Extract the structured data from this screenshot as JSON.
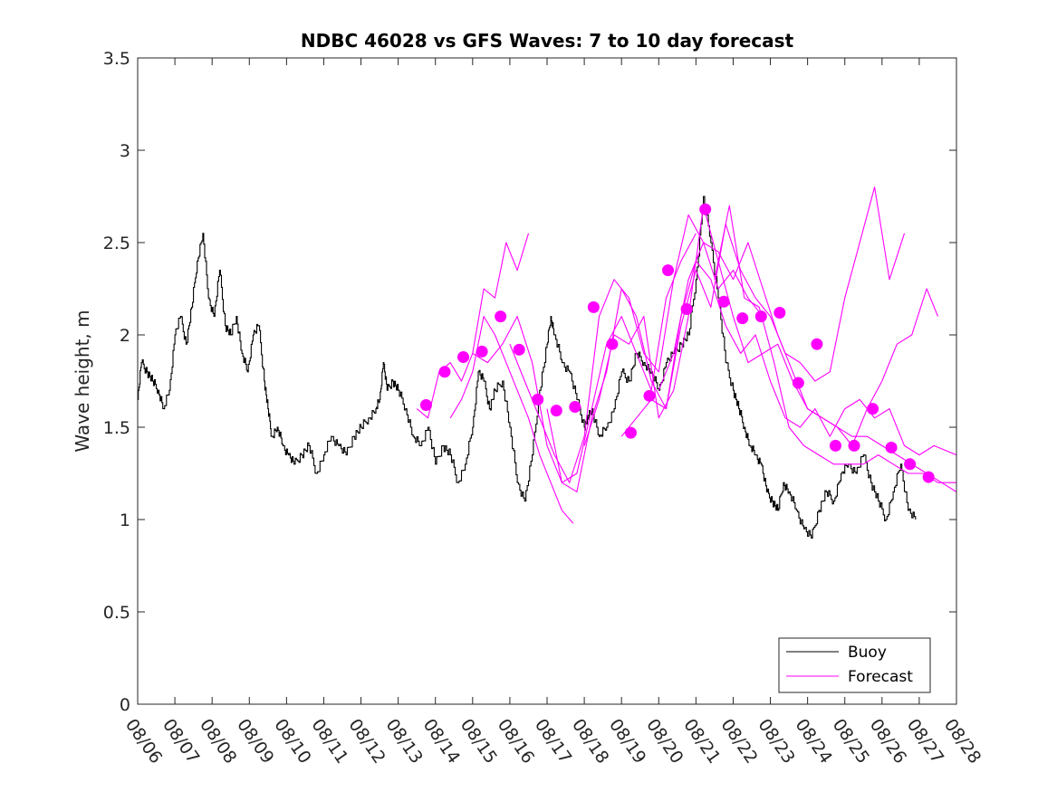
{
  "chart_data": {
    "type": "line",
    "title": "NDBC 46028 vs GFS Waves: 7 to 10 day forecast",
    "xlabel": "",
    "ylabel": "Wave height, m",
    "ylim": [
      0,
      3.5
    ],
    "yticks": [
      0,
      0.5,
      1,
      1.5,
      2,
      2.5,
      3,
      3.5
    ],
    "ytick_labels": [
      "0",
      "0.5",
      "1",
      "1.5",
      "2",
      "2.5",
      "3",
      "3.5"
    ],
    "xlim": [
      0,
      22
    ],
    "xtick_labels": [
      "08/06",
      "08/07",
      "08/08",
      "08/09",
      "08/10",
      "08/11",
      "08/12",
      "08/13",
      "08/14",
      "08/15",
      "08/16",
      "08/17",
      "08/18",
      "08/19",
      "08/20",
      "08/21",
      "08/22",
      "08/23",
      "08/24",
      "08/25",
      "08/26",
      "08/27",
      "08/28"
    ],
    "colors": {
      "buoy": "#000000",
      "forecast": "#ff00ff"
    },
    "legend": {
      "position": "bottom-right",
      "entries": [
        {
          "label": "Buoy",
          "series": "buoy"
        },
        {
          "label": "Forecast",
          "series": "forecast"
        }
      ]
    },
    "series": [
      {
        "name": "Buoy",
        "key": "buoy",
        "x": [
          0.0,
          0.1,
          0.25,
          0.4,
          0.55,
          0.7,
          0.85,
          1.0,
          1.15,
          1.3,
          1.45,
          1.6,
          1.75,
          1.9,
          2.05,
          2.2,
          2.35,
          2.5,
          2.65,
          2.8,
          2.95,
          3.1,
          3.25,
          3.4,
          3.5,
          3.6,
          3.75,
          3.9,
          4.05,
          4.2,
          4.4,
          4.6,
          4.8,
          5.0,
          5.2,
          5.4,
          5.6,
          5.8,
          6.0,
          6.2,
          6.4,
          6.5,
          6.6,
          6.7,
          6.85,
          7.0,
          7.2,
          7.4,
          7.6,
          7.8,
          8.0,
          8.2,
          8.4,
          8.6,
          8.8,
          9.0,
          9.15,
          9.3,
          9.45,
          9.6,
          9.8,
          10.0,
          10.2,
          10.4,
          10.6,
          10.8,
          11.0,
          11.1,
          11.2,
          11.4,
          11.6,
          11.8,
          12.0,
          12.1,
          12.2,
          12.4,
          12.6,
          12.8,
          13.0,
          13.2,
          13.4,
          13.6,
          13.8,
          14.0,
          14.2,
          14.4,
          14.6,
          14.8,
          15.0,
          15.2,
          15.4,
          15.6,
          15.8,
          16.0,
          16.15,
          16.3,
          16.45,
          16.6,
          16.75,
          16.9,
          17.05,
          17.2,
          17.35,
          17.5,
          17.7,
          17.9,
          18.1,
          18.3,
          18.5,
          18.7,
          18.9,
          19.1,
          19.3,
          19.5,
          19.7,
          19.9,
          20.1,
          20.3,
          20.5,
          20.7,
          20.9
        ],
        "y": [
          1.65,
          1.85,
          1.8,
          1.75,
          1.7,
          1.6,
          1.7,
          2.0,
          2.1,
          1.95,
          2.15,
          2.4,
          2.55,
          2.2,
          2.1,
          2.35,
          2.05,
          2.0,
          2.1,
          1.9,
          1.8,
          2.0,
          2.05,
          1.75,
          1.6,
          1.45,
          1.5,
          1.4,
          1.35,
          1.3,
          1.35,
          1.4,
          1.25,
          1.35,
          1.45,
          1.4,
          1.35,
          1.45,
          1.5,
          1.55,
          1.6,
          1.65,
          1.85,
          1.7,
          1.75,
          1.7,
          1.6,
          1.45,
          1.4,
          1.5,
          1.3,
          1.4,
          1.35,
          1.2,
          1.3,
          1.5,
          1.8,
          1.75,
          1.6,
          1.7,
          1.75,
          1.5,
          1.2,
          1.1,
          1.35,
          1.7,
          1.95,
          2.1,
          2.0,
          1.85,
          1.8,
          1.65,
          1.5,
          1.55,
          1.6,
          1.45,
          1.5,
          1.6,
          1.8,
          1.75,
          1.9,
          1.85,
          1.8,
          1.7,
          1.85,
          1.9,
          1.95,
          2.0,
          2.3,
          2.75,
          2.5,
          2.2,
          1.85,
          1.7,
          1.6,
          1.5,
          1.4,
          1.35,
          1.3,
          1.15,
          1.1,
          1.05,
          1.2,
          1.15,
          1.05,
          0.95,
          0.9,
          1.05,
          1.15,
          1.1,
          1.25,
          1.3,
          1.25,
          1.35,
          1.2,
          1.1,
          1.0,
          1.15,
          1.3,
          1.05,
          1.0
        ]
      },
      {
        "name": "Forecast",
        "key": "forecast",
        "runs": [
          {
            "x": [
              7.5,
              7.8,
              8.1,
              8.4,
              8.7,
              9.0,
              9.3,
              9.6,
              9.9,
              10.2,
              10.5
            ],
            "y": [
              1.6,
              1.55,
              1.8,
              1.85,
              1.75,
              1.9,
              2.25,
              2.2,
              2.5,
              2.35,
              2.55
            ]
          },
          {
            "x": [
              8.4,
              8.7,
              9.0,
              9.3,
              9.6,
              9.9,
              10.2,
              10.5,
              10.8,
              11.1,
              11.4,
              11.7
            ],
            "y": [
              1.55,
              1.65,
              1.8,
              2.1,
              2.0,
              1.85,
              1.7,
              1.55,
              1.35,
              1.2,
              1.05,
              0.98
            ]
          },
          {
            "x": [
              9.0,
              9.4,
              9.8,
              10.2,
              10.6,
              11.0,
              11.4,
              11.8,
              12.2,
              12.6,
              13.0,
              13.4,
              13.8,
              14.2,
              14.6,
              15.0
            ],
            "y": [
              1.9,
              1.85,
              1.95,
              2.1,
              1.85,
              1.4,
              1.2,
              1.25,
              1.6,
              1.95,
              2.1,
              1.9,
              1.7,
              2.2,
              2.4,
              2.55
            ]
          },
          {
            "x": [
              10.0,
              10.4,
              10.8,
              11.2,
              11.6,
              12.0,
              12.4,
              12.8,
              13.2,
              13.6,
              14.0,
              14.4,
              14.8,
              15.2,
              15.6,
              16.0,
              16.4,
              16.8
            ],
            "y": [
              1.95,
              1.75,
              1.55,
              1.35,
              1.2,
              1.45,
              2.1,
              2.3,
              2.2,
              1.9,
              1.8,
              2.3,
              2.65,
              2.5,
              2.25,
              2.35,
              2.2,
              2.1
            ]
          },
          {
            "x": [
              11.0,
              11.4,
              11.8,
              12.2,
              12.6,
              13.0,
              13.4,
              13.8,
              14.2,
              14.6,
              15.0,
              15.4,
              15.8,
              16.2,
              16.6,
              17.0,
              17.4,
              17.8,
              18.2,
              18.6,
              19.0,
              19.4,
              19.8,
              20.2,
              20.6
            ],
            "y": [
              1.6,
              1.2,
              1.15,
              1.55,
              1.8,
              2.25,
              2.1,
              1.75,
              1.6,
              2.05,
              2.35,
              2.15,
              2.6,
              2.35,
              2.2,
              2.1,
              1.9,
              1.85,
              1.75,
              1.8,
              2.2,
              2.5,
              2.8,
              2.3,
              2.55
            ]
          },
          {
            "x": [
              12.0,
              12.4,
              12.8,
              13.2,
              13.6,
              14.0,
              14.4,
              14.8,
              15.2,
              15.6,
              16.0,
              16.4,
              16.8,
              17.2,
              17.6,
              18.0,
              18.4,
              18.8,
              19.2,
              19.6,
              20.0,
              20.4,
              20.8,
              21.2,
              21.5
            ],
            "y": [
              1.4,
              1.65,
              2.0,
              1.95,
              2.1,
              1.55,
              1.7,
              2.1,
              2.7,
              2.4,
              2.1,
              1.85,
              1.9,
              1.95,
              1.75,
              1.6,
              1.55,
              1.5,
              1.4,
              1.6,
              1.75,
              1.95,
              2.0,
              2.25,
              2.1
            ]
          },
          {
            "x": [
              13.0,
              13.4,
              13.8,
              14.2,
              14.6,
              15.0,
              15.4,
              15.8,
              16.2,
              16.6,
              17.0,
              17.4,
              17.8,
              18.2,
              18.6,
              19.0,
              19.4,
              19.8,
              20.2,
              20.6,
              21.0,
              21.4,
              22.0
            ],
            "y": [
              1.45,
              1.55,
              1.65,
              1.6,
              2.1,
              2.4,
              2.3,
              2.05,
              1.9,
              2.0,
              1.75,
              1.55,
              1.5,
              1.6,
              1.45,
              1.6,
              1.65,
              1.55,
              1.6,
              1.4,
              1.35,
              1.4,
              1.35
            ]
          },
          {
            "x": [
              14.0,
              14.4,
              14.8,
              15.2,
              15.6,
              16.0,
              16.4,
              16.8,
              17.2,
              17.6,
              18.0,
              18.4,
              18.8,
              19.2,
              19.6,
              20.0,
              20.4,
              20.8,
              21.2,
              21.6,
              22.0
            ],
            "y": [
              1.7,
              1.9,
              2.3,
              2.5,
              2.45,
              2.3,
              2.5,
              2.25,
              2.0,
              1.8,
              1.6,
              1.55,
              1.5,
              1.45,
              1.45,
              1.4,
              1.35,
              1.3,
              1.25,
              1.2,
              1.15
            ]
          },
          {
            "x": [
              15.5,
              15.9,
              16.3,
              16.7,
              17.1,
              17.5,
              17.9,
              18.3,
              18.7,
              19.1,
              19.5,
              19.9,
              20.3,
              20.7,
              21.1,
              21.5,
              22.0
            ],
            "y": [
              2.3,
              2.7,
              2.2,
              2.15,
              1.85,
              1.5,
              1.4,
              1.35,
              1.3,
              1.3,
              1.3,
              1.35,
              1.3,
              1.25,
              1.25,
              1.2,
              1.2
            ]
          }
        ],
        "markers": {
          "x": [
            7.75,
            8.25,
            8.75,
            9.25,
            9.75,
            10.25,
            10.75,
            11.25,
            11.75,
            12.25,
            12.75,
            13.25,
            13.75,
            14.25,
            14.75,
            15.25,
            15.75,
            16.25,
            16.75,
            17.25,
            17.75,
            18.25,
            18.75,
            19.25,
            19.75,
            20.25,
            20.75,
            21.25
          ],
          "y": [
            1.62,
            1.8,
            1.88,
            1.91,
            2.1,
            1.92,
            1.65,
            1.59,
            1.61,
            2.15,
            1.95,
            1.47,
            1.67,
            2.35,
            2.14,
            2.68,
            2.18,
            2.09,
            2.1,
            2.12,
            1.74,
            1.95,
            1.4,
            1.4,
            1.6,
            1.39,
            1.3,
            1.23
          ]
        }
      }
    ]
  }
}
